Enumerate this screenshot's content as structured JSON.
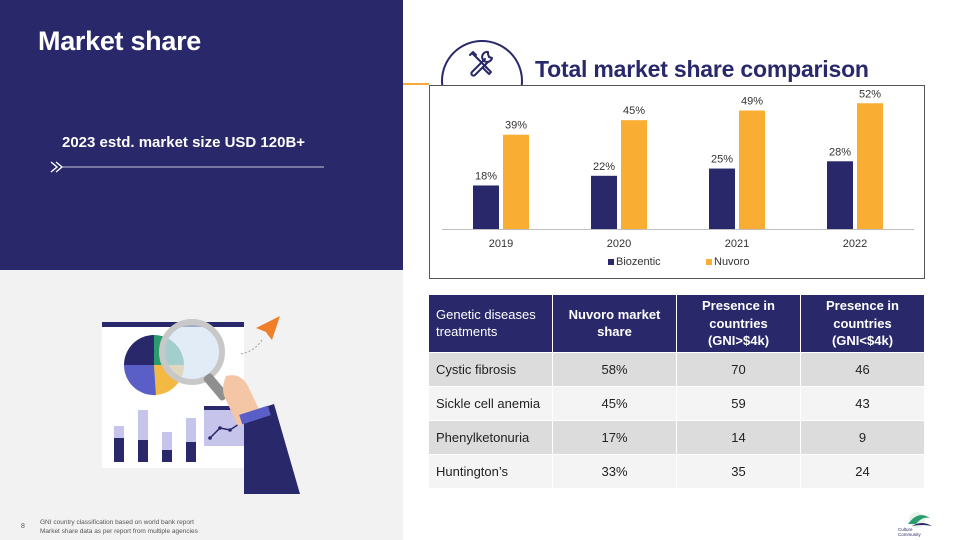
{
  "slide": {
    "title": "Market share",
    "subtitle": "2023 estd. market size USD 120B+",
    "page_number": "8",
    "footnotes": [
      "GNI country classification based on world bank report",
      "Market share data as per report from multiple agencies"
    ],
    "logo_text": [
      "Culture",
      "Community"
    ]
  },
  "colors": {
    "navy": "#28286a",
    "orange": "#f4a93a",
    "gray_bg": "#f2f2f2"
  },
  "icons": {
    "badge": "tools-icon",
    "arrow": "paper-plane-icon"
  },
  "chart_data": {
    "type": "bar",
    "title": "Total market share comparison",
    "categories": [
      "2019",
      "2020",
      "2021",
      "2022"
    ],
    "series": [
      {
        "name": "Biozentic",
        "values": [
          18,
          22,
          25,
          28
        ],
        "labels": [
          "18%",
          "22%",
          "25%",
          "28%"
        ],
        "color": "#28286a"
      },
      {
        "name": "Nuvoro",
        "values": [
          39,
          45,
          49,
          52
        ],
        "labels": [
          "39%",
          "45%",
          "49%",
          "52%"
        ],
        "color": "#f9ae33"
      }
    ],
    "ylim": [
      0,
      55
    ],
    "grid": false,
    "legend_position": "bottom"
  },
  "table": {
    "headers": [
      "Genetic diseases treatments",
      "Nuvoro market share",
      "Presence in countries (GNI>$4k)",
      "Presence in countries (GNI<$4k)"
    ],
    "rows": [
      [
        "Cystic fibrosis",
        "58%",
        "70",
        "46"
      ],
      [
        "Sickle cell anemia",
        "45%",
        "59",
        "43"
      ],
      [
        "Phenylketonuria",
        "17%",
        "14",
        "9"
      ],
      [
        "Huntington’s",
        "33%",
        "35",
        "24"
      ]
    ]
  }
}
